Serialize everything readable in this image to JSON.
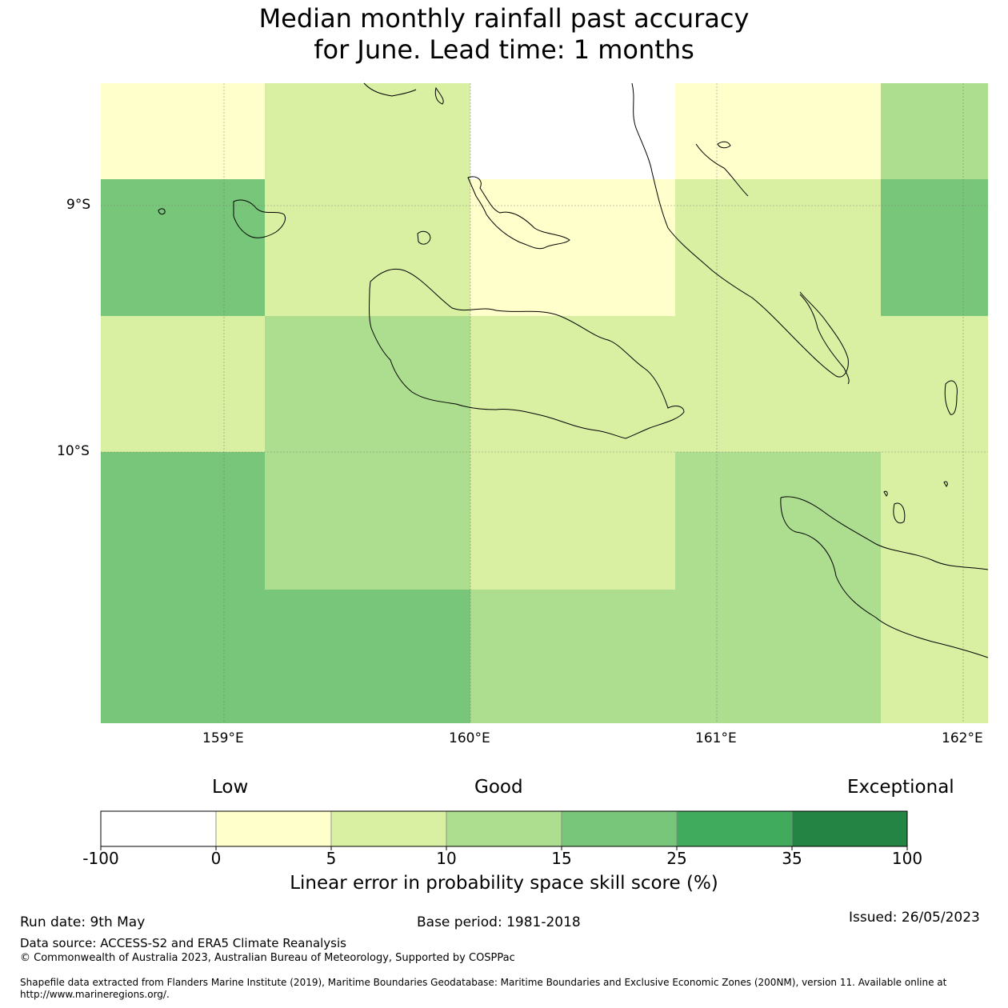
{
  "title": {
    "line1": "Median monthly rainfall past accuracy",
    "line2": "for June. Lead time: 1 months"
  },
  "map": {
    "lat_labels": [
      "9°S",
      "10°S"
    ],
    "lon_labels": [
      "159°E",
      "160°E",
      "161°E",
      "162°E"
    ],
    "grid_values": [
      [
        0,
        5,
        -100,
        0,
        10
      ],
      [
        15,
        5,
        0,
        5,
        15
      ],
      [
        5,
        10,
        5,
        5,
        5
      ],
      [
        15,
        10,
        5,
        10,
        5
      ],
      [
        15,
        15,
        10,
        10,
        5
      ]
    ]
  },
  "legend": {
    "categories": [
      "Low",
      "Good",
      "Exceptional"
    ],
    "ticks": [
      "-100",
      "0",
      "5",
      "10",
      "15",
      "25",
      "35",
      "100"
    ],
    "colors": [
      "#ffffff",
      "#ffffcc",
      "#d9f0a3",
      "#addd8e",
      "#78c679",
      "#41ab5d",
      "#238443"
    ],
    "label": "Linear error in probability space skill score (%)"
  },
  "footer": {
    "run_date": "Run date: 9th May",
    "base_period": "Base period: 1981-2018",
    "issued": "Issued: 26/05/2023",
    "data_source": "Data source: ACCESS-S2 and ERA5 Climate Reanalysis",
    "copyright": "© Commonwealth of Australia 2023, Australian Bureau of Meteorology, Supported by COSPPac",
    "shapefile_line1": "Shapefile data extracted from Flanders Marine Institute (2019), Maritime Boundaries Geodatabase: Maritime Boundaries and Exclusive Economic Zones (200NM), version 11. Available online at",
    "shapefile_line2": "http://www.marineregions.org/."
  }
}
